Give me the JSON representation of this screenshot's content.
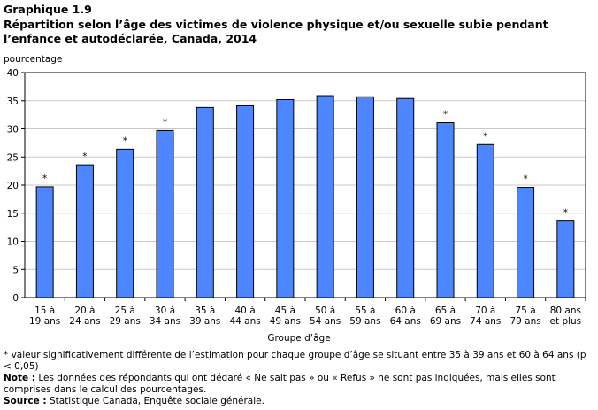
{
  "header": {
    "label": "Graphique 1.9",
    "title": "Répartition selon l’âge des victimes de violence physique et/ou sexuelle subie pendant l’enfance et autodéclarée, Canada, 2014"
  },
  "chart_data": {
    "type": "bar",
    "ylabel": "pourcentage",
    "xlabel": "Groupe d’âge",
    "ylim": [
      0,
      40
    ],
    "yticks": [
      0,
      5,
      10,
      15,
      20,
      25,
      30,
      35,
      40
    ],
    "grid": true,
    "bar_color": "#4d86ff",
    "categories": [
      [
        "15 à",
        "19 ans"
      ],
      [
        "20 à",
        "24 ans"
      ],
      [
        "25 à",
        "29 ans"
      ],
      [
        "30 à",
        "34 ans"
      ],
      [
        "35 à",
        "39 ans"
      ],
      [
        "40 à",
        "44 ans"
      ],
      [
        "45 à",
        "49 ans"
      ],
      [
        "50 à",
        "54 ans"
      ],
      [
        "55 à",
        "59 ans"
      ],
      [
        "60 à",
        "64 ans"
      ],
      [
        "65 à",
        "69 ans"
      ],
      [
        "70 à",
        "74 ans"
      ],
      [
        "75 à",
        "79 ans"
      ],
      [
        "80 ans",
        "et plus"
      ]
    ],
    "values": [
      19.7,
      23.6,
      26.4,
      29.7,
      33.8,
      34.1,
      35.2,
      35.9,
      35.7,
      35.4,
      31.1,
      27.2,
      19.6,
      13.6
    ],
    "significance_marks": [
      "*",
      "*",
      "*",
      "*",
      "",
      "",
      "",
      "",
      "",
      "",
      "*",
      "*",
      "*",
      "*"
    ]
  },
  "notes": {
    "asterisk": "* valeur significativement différente de l’estimation pour chaque groupe d’âge se situant entre 35 à 39 ans et 60 à 64 ans (p < 0,05)",
    "note_label": "Note :",
    "note_text": " Les données des répondants qui ont dédaré « Ne sait pas » ou « Refus » ne sont pas indiquées, mais elles sont comprises dans le calcul des pourcentages.",
    "source_label": "Source :",
    "source_text": " Statistique Canada, Enquête sociale générale."
  }
}
